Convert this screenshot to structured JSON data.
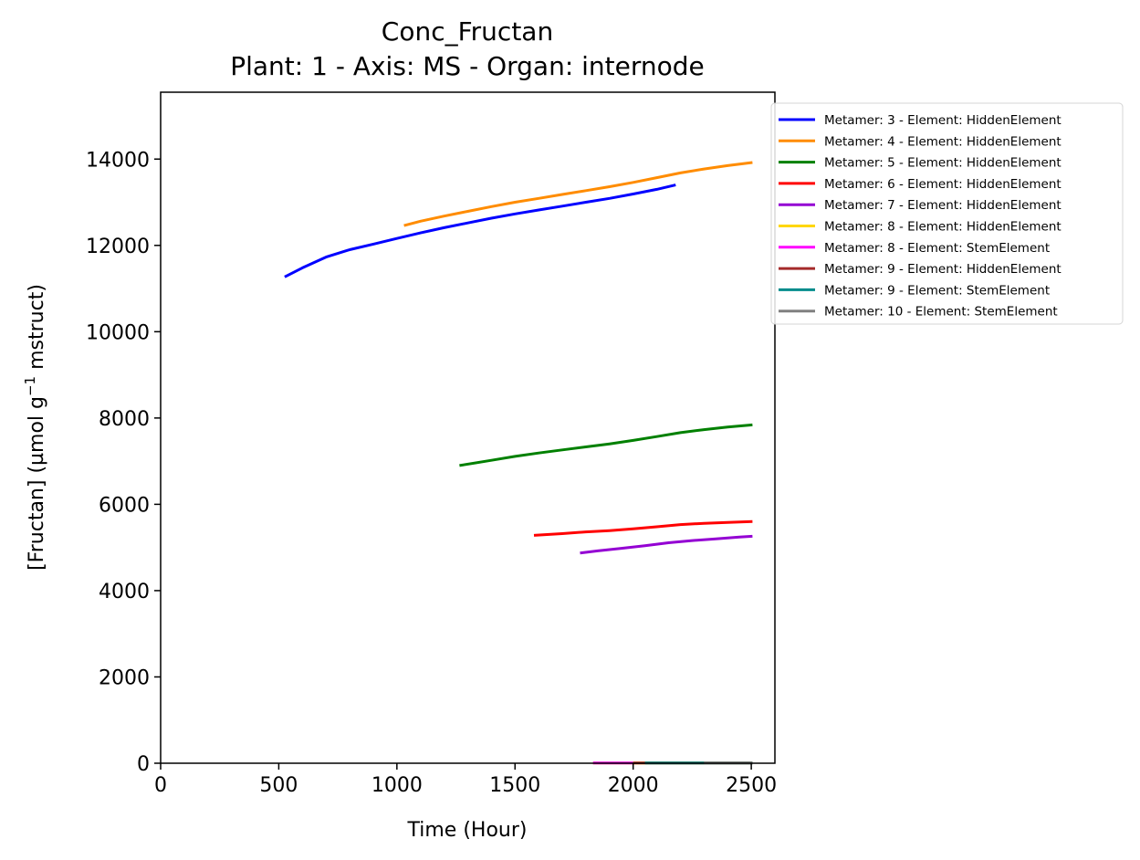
{
  "chart_data": {
    "type": "line",
    "title": "Conc_Fructan",
    "subtitle": "Plant: 1 - Axis: MS - Organ: internode",
    "xlabel": "Time (Hour)",
    "ylabel_prefix": "[Fructan] (µmol g",
    "ylabel_sup": "−1",
    "ylabel_suffix": " mstruct)",
    "xlim": [
      0,
      2600
    ],
    "ylim": [
      0,
      15550
    ],
    "xticks": [
      0,
      500,
      1000,
      1500,
      2000,
      2500
    ],
    "yticks": [
      0,
      2000,
      4000,
      6000,
      8000,
      10000,
      12000,
      14000
    ],
    "legend_position": "outside-top-right",
    "grid": false,
    "series": [
      {
        "name": "Metamer: 3 - Element: HiddenElement",
        "color": "#0000ff",
        "x": [
          525,
          600,
          700,
          800,
          900,
          1000,
          1100,
          1200,
          1300,
          1400,
          1500,
          1600,
          1700,
          1800,
          1900,
          2000,
          2100,
          2180
        ],
        "y": [
          11270,
          11480,
          11730,
          11900,
          12030,
          12160,
          12290,
          12410,
          12520,
          12630,
          12730,
          12820,
          12910,
          13000,
          13090,
          13190,
          13300,
          13400
        ]
      },
      {
        "name": "Metamer: 4 - Element: HiddenElement",
        "color": "#ff8c00",
        "x": [
          1030,
          1100,
          1200,
          1300,
          1400,
          1500,
          1600,
          1700,
          1800,
          1900,
          2000,
          2100,
          2200,
          2300,
          2400,
          2505
        ],
        "y": [
          12460,
          12560,
          12680,
          12790,
          12900,
          13000,
          13090,
          13180,
          13270,
          13360,
          13460,
          13570,
          13680,
          13770,
          13850,
          13920
        ]
      },
      {
        "name": "Metamer: 5 - Element: HiddenElement",
        "color": "#008000",
        "x": [
          1265,
          1400,
          1500,
          1600,
          1700,
          1800,
          1900,
          2000,
          2100,
          2200,
          2300,
          2400,
          2505
        ],
        "y": [
          6900,
          7020,
          7110,
          7190,
          7260,
          7330,
          7400,
          7480,
          7570,
          7660,
          7730,
          7790,
          7840
        ]
      },
      {
        "name": "Metamer: 6 - Element: HiddenElement",
        "color": "#ff0000",
        "x": [
          1580,
          1700,
          1800,
          1900,
          2000,
          2100,
          2200,
          2300,
          2400,
          2505
        ],
        "y": [
          5280,
          5320,
          5360,
          5390,
          5430,
          5480,
          5530,
          5560,
          5580,
          5600
        ]
      },
      {
        "name": "Metamer: 7 - Element: HiddenElement",
        "color": "#9400d3",
        "x": [
          1775,
          1850,
          1950,
          2050,
          2150,
          2250,
          2350,
          2450,
          2505
        ],
        "y": [
          4870,
          4920,
          4980,
          5040,
          5110,
          5160,
          5200,
          5240,
          5260
        ]
      },
      {
        "name": "Metamer: 8 - Element: HiddenElement",
        "color": "#ffd700",
        "x": [
          1830,
          2000,
          2200,
          2400,
          2505
        ],
        "y": [
          5,
          5,
          5,
          5,
          5
        ]
      },
      {
        "name": "Metamer: 8 - Element: StemElement",
        "color": "#ff00ff",
        "x": [
          1830,
          1900,
          2000
        ],
        "y": [
          5,
          5,
          5
        ]
      },
      {
        "name": "Metamer: 9 - Element: HiddenElement",
        "color": "#a52a2a",
        "x": [
          2000,
          2200,
          2400,
          2505
        ],
        "y": [
          5,
          5,
          5,
          5
        ]
      },
      {
        "name": "Metamer: 9 - Element: StemElement",
        "color": "#008b8b",
        "x": [
          2050,
          2200,
          2350,
          2505
        ],
        "y": [
          5,
          5,
          5,
          5
        ]
      },
      {
        "name": "Metamer: 10 - Element: StemElement",
        "color": "#808080",
        "x": [
          2300,
          2400,
          2505
        ],
        "y": [
          5,
          5,
          5
        ]
      }
    ]
  }
}
